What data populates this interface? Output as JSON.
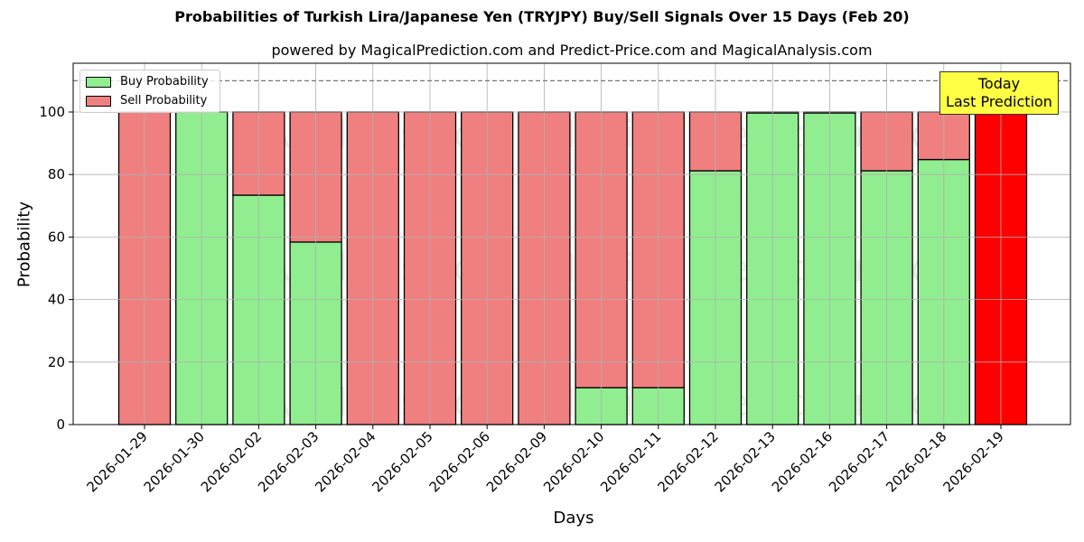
{
  "chart_data": {
    "type": "bar",
    "stacked": true,
    "title": "Probabilities of Turkish Lira/Japanese Yen (TRYJPY) Buy/Sell Signals Over 15 Days (Feb 20)",
    "subtitle": "powered by MagicalPrediction.com and Predict-Price.com and MagicalAnalysis.com",
    "xlabel": "Days",
    "ylabel": "Probability",
    "ylim": [
      0,
      115
    ],
    "yticks": [
      0,
      20,
      40,
      60,
      80,
      100
    ],
    "grid": true,
    "reference_line": {
      "y": 110,
      "style": "dashed"
    },
    "legend_position": "upper left",
    "categories": [
      "2026-01-29",
      "2026-01-30",
      "2026-02-02",
      "2026-02-03",
      "2026-02-04",
      "2026-02-05",
      "2026-02-06",
      "2026-02-09",
      "2026-02-10",
      "2026-02-11",
      "2026-02-12",
      "2026-02-13",
      "2026-02-16",
      "2026-02-17",
      "2026-02-18",
      "2026-02-19"
    ],
    "series": [
      {
        "name": "Buy Probability",
        "color": "#90ee90",
        "values": [
          0,
          100,
          73.4,
          58.4,
          0,
          0,
          0,
          0,
          11.8,
          11.8,
          81.2,
          99.7,
          99.7,
          81.2,
          84.8,
          0
        ]
      },
      {
        "name": "Sell Probability",
        "color": "#f08080",
        "values": [
          100,
          0,
          26.6,
          41.6,
          100,
          100,
          100,
          100,
          88.2,
          88.2,
          18.8,
          0.3,
          0.3,
          18.8,
          15.2,
          100
        ]
      }
    ],
    "highlight": {
      "category": "2026-02-19",
      "color": "#ff0000",
      "annotation": "Today\nLast Prediction"
    },
    "watermarks": [
      "MagicalAnalysis.com",
      "MagicalPrediction.com"
    ]
  },
  "legend": {
    "buy": "Buy Probability",
    "sell": "Sell Probability"
  },
  "annotation": {
    "line1": "Today",
    "line2": "Last Prediction"
  }
}
